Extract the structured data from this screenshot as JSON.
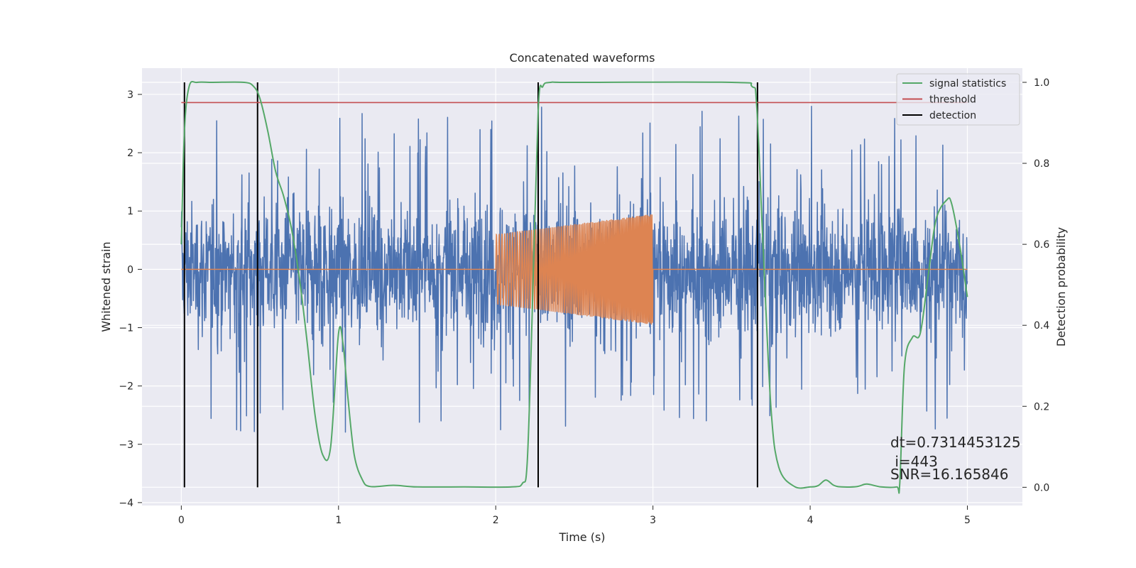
{
  "chart_data": {
    "type": "line",
    "title": "Concatenated waveforms",
    "xlabel": "Time (s)",
    "ylabel": "Whitened strain",
    "y2label": "Detection probability",
    "xlim": [
      -0.25,
      5.35
    ],
    "ylim": [
      -4.05,
      3.45
    ],
    "y2lim": [
      -0.045,
      1.035
    ],
    "xticks": [
      0,
      1,
      2,
      3,
      4,
      5
    ],
    "yticks": [
      -4,
      -3,
      -2,
      -1,
      0,
      1,
      2,
      3
    ],
    "y2ticks": [
      "0.0",
      "0.2",
      "0.4",
      "0.6",
      "0.8",
      "1.0"
    ],
    "grid": true,
    "legend_position": "top-right",
    "series": [
      {
        "name": "",
        "kind": "noise",
        "axis": "left",
        "color": "#4c72b0",
        "x_range": [
          0,
          5
        ],
        "typical_band": [
          -0.9,
          0.9
        ],
        "extreme_range": [
          -3.7,
          3.35
        ]
      },
      {
        "name": "",
        "kind": "chirp",
        "axis": "left",
        "color": "#dd8452",
        "x_range": [
          0,
          5
        ],
        "chirp_window": [
          2.0,
          3.0
        ],
        "amplitude_start": 0.6,
        "amplitude_end": 0.95,
        "baseline": 0
      },
      {
        "name": "signal statistics",
        "axis": "right",
        "color": "#55a868",
        "x": [
          0,
          0.02,
          0.05,
          0.1,
          0.2,
          0.4,
          0.46,
          0.5,
          0.55,
          0.6,
          0.65,
          0.7,
          0.75,
          0.8,
          0.85,
          0.9,
          0.95,
          1.0,
          1.03,
          1.06,
          1.1,
          1.15,
          1.2,
          1.35,
          1.5,
          1.8,
          2.1,
          2.17,
          2.2,
          2.23,
          2.27,
          2.3,
          2.35,
          2.5,
          3.5,
          3.63,
          3.66,
          3.7,
          3.75,
          3.8,
          3.9,
          4.0,
          4.05,
          4.1,
          4.15,
          4.2,
          4.3,
          4.36,
          4.45,
          4.55,
          4.57,
          4.6,
          4.65,
          4.7,
          4.75,
          4.8,
          4.87,
          4.9,
          4.95,
          5.0
        ],
        "y": [
          0.6,
          0.88,
          0.99,
          1.0,
          1.0,
          1.0,
          0.99,
          0.96,
          0.88,
          0.78,
          0.72,
          0.64,
          0.52,
          0.36,
          0.18,
          0.08,
          0.1,
          0.38,
          0.35,
          0.22,
          0.08,
          0.02,
          0.002,
          0.005,
          0.001,
          0.001,
          0.001,
          0.01,
          0.06,
          0.4,
          0.93,
          0.99,
          1.0,
          1.0,
          1.0,
          0.99,
          0.94,
          0.6,
          0.2,
          0.05,
          0.002,
          0.001,
          0.004,
          0.018,
          0.005,
          0.001,
          0.002,
          0.008,
          0.001,
          0.001,
          0.01,
          0.3,
          0.37,
          0.38,
          0.52,
          0.66,
          0.71,
          0.7,
          0.6,
          0.47
        ]
      },
      {
        "name": "threshold",
        "axis": "right",
        "color": "#c44e52",
        "x": [
          0,
          5
        ],
        "y": [
          0.95,
          0.95
        ]
      },
      {
        "name": "detection",
        "axis": "right",
        "color": "#000000",
        "x": [
          0.02,
          0.485,
          2.27,
          3.665
        ],
        "y_range": [
          0.0,
          1.0
        ]
      }
    ],
    "annotations": [
      "dt=0.7314453125",
      " i=443",
      "SNR=16.165846"
    ]
  }
}
